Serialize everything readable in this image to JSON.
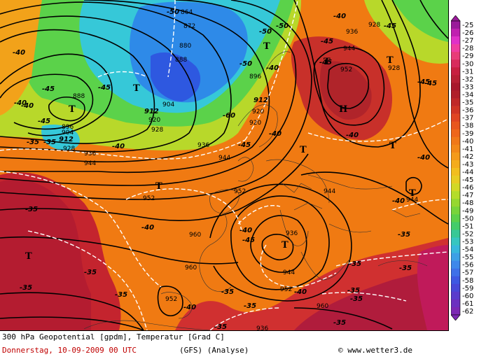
{
  "footer": {
    "title": "300 hPa Geopotential [gpdm], Temperatur [Grad C]",
    "date": "Donnerstag, 10-09-2009  00 UTC",
    "model": "(GFS)  (Analyse)",
    "copyright": "© www.wetter3.de"
  },
  "colors": {
    "deep_red": "#b0202c",
    "red": "#d83a2a",
    "orange": "#f07a12",
    "amber": "#f2a21a",
    "yellow_green": "#b8d82a",
    "green": "#5bd24a",
    "cyan": "#36c8d8",
    "blue": "#2e6ae0"
  },
  "temperature_scale": {
    "unit": "Grad C",
    "labels": [
      "-25",
      "-26",
      "-27",
      "-28",
      "-29",
      "-30",
      "-31",
      "-32",
      "-33",
      "-34",
      "-35",
      "-36",
      "-37",
      "-38",
      "-39",
      "-40",
      "-41",
      "-42",
      "-43",
      "-44",
      "-45",
      "-46",
      "-47",
      "-48",
      "-49",
      "-50",
      "-51",
      "-52",
      "-53",
      "-54",
      "-55",
      "-56",
      "-57",
      "-58",
      "-59",
      "-60",
      "-61",
      "-62"
    ],
    "colors": [
      "#9a1a9a",
      "#c020b0",
      "#e030c8",
      "#f03ca0",
      "#e83c78",
      "#d82c5c",
      "#c82040",
      "#b82034",
      "#a8182c",
      "#b0202a",
      "#c02828",
      "#d03424",
      "#e04422",
      "#e8561e",
      "#ee661a",
      "#f07818",
      "#f28818",
      "#f49a1a",
      "#f4ac1c",
      "#f2be1e",
      "#e8cc22",
      "#d2d826",
      "#b4dc2a",
      "#96d830",
      "#78d43a",
      "#5cd04a",
      "#44cc6a",
      "#38c896",
      "#36c6c0",
      "#36b8dc",
      "#3ca0e6",
      "#3e88ea",
      "#3e70e8",
      "#3e58e2",
      "#4848d8",
      "#5a3ccc",
      "#6c30c0",
      "#7c28b4"
    ]
  },
  "geopotential_labels": [
    "864",
    "872",
    "880",
    "888",
    "896",
    "904",
    "912",
    "920",
    "928",
    "936",
    "944",
    "952",
    "960",
    "936",
    "944",
    "952",
    "928",
    "936",
    "944",
    "960",
    "952",
    "944",
    "896",
    "904",
    "912",
    "920",
    "928",
    "936",
    "944",
    "888",
    "912",
    "920",
    "952",
    "960",
    "952",
    "928",
    "936",
    "944"
  ],
  "temperature_labels": [
    "-50",
    "-50",
    "-50",
    "-40",
    "-45",
    "-45",
    "-40",
    "-45",
    "-35",
    "-35",
    "-45",
    "-40",
    "-45",
    "-50",
    "-45",
    "-40",
    "-45",
    "-60",
    "-45",
    "-40",
    "-40",
    "-40",
    "-40",
    "-40",
    "-35",
    "-35",
    "-35",
    "-35",
    "-35",
    "-35",
    "-35",
    "-35",
    "-35",
    "-35",
    "-35",
    "-40",
    "-40",
    "-40",
    "-35",
    "-35",
    "-45",
    "-45",
    "-40",
    "-40"
  ],
  "pressure_centers": [
    "T",
    "T",
    "T",
    "T",
    "T",
    "T",
    "T",
    "T",
    "T",
    "T",
    "H",
    "T"
  ]
}
